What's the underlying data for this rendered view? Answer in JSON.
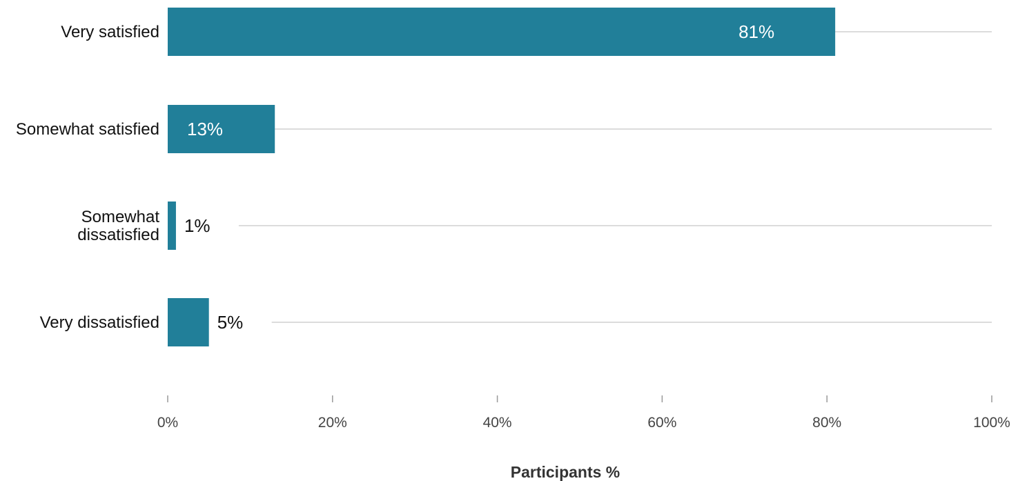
{
  "chart_data": {
    "type": "bar",
    "orientation": "horizontal",
    "categories": [
      [
        "Very satisfied"
      ],
      [
        "Somewhat satisfied"
      ],
      [
        "Somewhat",
        "dissatisfied"
      ],
      [
        "Very dissatisfied"
      ]
    ],
    "values": [
      81,
      13,
      1,
      5
    ],
    "value_labels": [
      "81%",
      "13%",
      "1%",
      "5%"
    ],
    "xlim": [
      0,
      100
    ],
    "xticks": [
      0,
      20,
      40,
      60,
      80,
      100
    ],
    "xtick_labels": [
      "0%",
      "20%",
      "40%",
      "60%",
      "80%",
      "100%"
    ],
    "xlabel": "Participants %",
    "ylabel": "",
    "grid": true,
    "colors": {
      "bar": "#217f99",
      "grid": "#dcdcdc",
      "label_inside": "#ffffff",
      "label_outside": "#111111"
    }
  }
}
